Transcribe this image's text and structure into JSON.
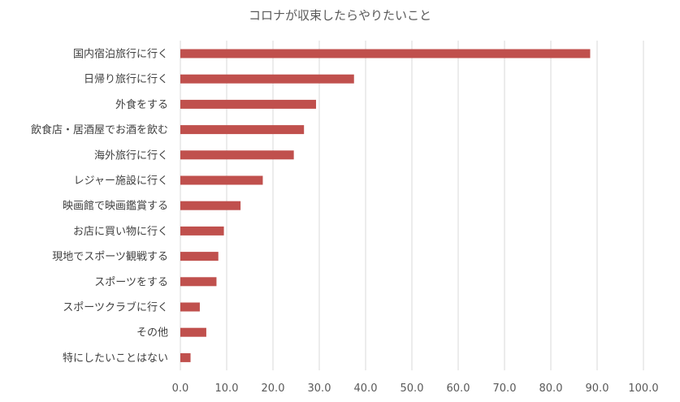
{
  "chart_data": {
    "type": "bar",
    "orientation": "horizontal",
    "title": "コロナが収束したらやりたいこと",
    "categories": [
      "国内宿泊旅行に行く",
      "日帰り旅行に行く",
      "外食をする",
      "飲食店・居酒屋でお酒を飲む",
      "海外旅行に行く",
      "レジャー施設に行く",
      "映画館で映画鑑賞する",
      "お店に買い物に行く",
      "現地でスポーツ観戦する",
      "スポーツをする",
      "スポーツクラブに行く",
      "その他",
      "特にしたいことはない"
    ],
    "values": [
      88.5,
      37.5,
      29.3,
      26.7,
      24.5,
      17.8,
      13.0,
      9.4,
      8.2,
      7.8,
      4.2,
      5.6,
      2.2
    ],
    "xlim": [
      0,
      100
    ],
    "xticks": [
      "0.0",
      "10.0",
      "20.0",
      "30.0",
      "40.0",
      "50.0",
      "60.0",
      "70.0",
      "80.0",
      "90.0",
      "100.0"
    ],
    "grid": "vertical",
    "bar_color": "#c0504d"
  }
}
